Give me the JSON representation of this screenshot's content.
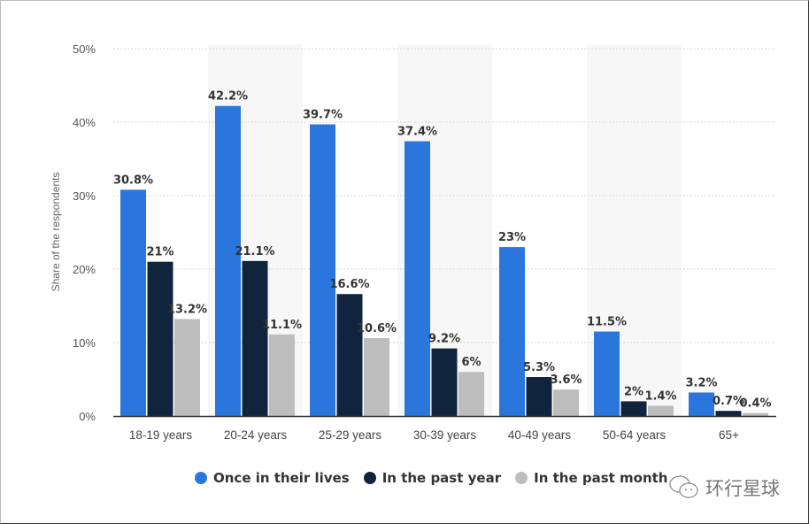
{
  "chart_data": {
    "type": "bar",
    "ylabel": "Share of the respondents",
    "xlabel": "",
    "ylim": [
      0,
      50
    ],
    "yticks": [
      "0%",
      "10%",
      "20%",
      "30%",
      "40%",
      "50%"
    ],
    "grid": true,
    "legend_position": "bottom",
    "categories": [
      "18-19 years",
      "20-24 years",
      "25-29 years",
      "30-39 years",
      "40-49 years",
      "50-64 years",
      "65+"
    ],
    "series": [
      {
        "name": "Once in their lives",
        "color": "#2a76dd",
        "values": [
          30.8,
          42.2,
          39.7,
          37.4,
          23,
          11.5,
          3.2
        ]
      },
      {
        "name": "In the past year",
        "color": "#10243e",
        "values": [
          21,
          21.1,
          16.6,
          9.2,
          5.3,
          2,
          0.7
        ]
      },
      {
        "name": "In the past month",
        "color": "#bdbdbd",
        "values": [
          13.2,
          11.1,
          10.6,
          6,
          3.6,
          1.4,
          0.4
        ]
      }
    ]
  },
  "watermark": "环行星球"
}
